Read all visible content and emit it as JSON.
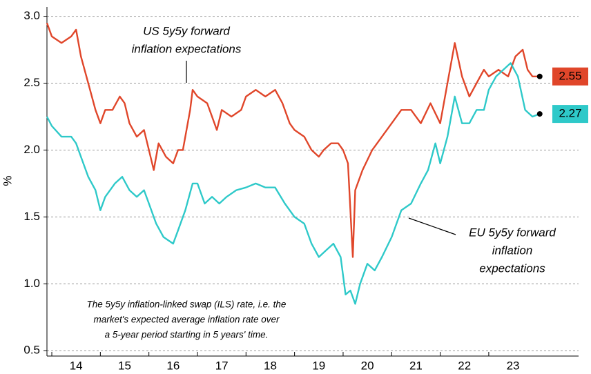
{
  "chart_data": {
    "type": "line",
    "y_label": "%",
    "xlim": [
      2013.9,
      2024.85
    ],
    "ylim": [
      0.46,
      3.07
    ],
    "xticks": [
      {
        "value": 2014,
        "label": "14"
      },
      {
        "value": 2015,
        "label": "15"
      },
      {
        "value": 2016,
        "label": "16"
      },
      {
        "value": 2017,
        "label": "17"
      },
      {
        "value": 2018,
        "label": "18"
      },
      {
        "value": 2019,
        "label": "19"
      },
      {
        "value": 2020,
        "label": "20"
      },
      {
        "value": 2021,
        "label": "21"
      },
      {
        "value": 2022,
        "label": "22"
      },
      {
        "value": 2023,
        "label": "23"
      }
    ],
    "yticks": [
      0.5,
      {
        "value": 1,
        "label": "1.0"
      },
      1.5,
      {
        "value": 2,
        "label": "2.0"
      },
      2.5,
      {
        "value": 3,
        "label": "3.0"
      }
    ],
    "grid": true,
    "series": [
      {
        "annotation": [
          "US 5y5y forward",
          "inflation expectations"
        ],
        "color": "#e0462a",
        "x": [
          2013.9,
          2014.0,
          2014.2,
          2014.4,
          2014.5,
          2014.6,
          2014.75,
          2014.9,
          2015.0,
          2015.1,
          2015.25,
          2015.4,
          2015.5,
          2015.6,
          2015.75,
          2015.9,
          2016.0,
          2016.1,
          2016.2,
          2016.35,
          2016.5,
          2016.6,
          2016.7,
          2016.85,
          2016.9,
          2017.0,
          2017.2,
          2017.4,
          2017.5,
          2017.7,
          2017.9,
          2018.0,
          2018.2,
          2018.4,
          2018.6,
          2018.75,
          2018.9,
          2019.0,
          2019.2,
          2019.35,
          2019.5,
          2019.6,
          2019.75,
          2019.9,
          2020.0,
          2020.1,
          2020.2,
          2020.25,
          2020.4,
          2020.6,
          2020.8,
          2021.0,
          2021.2,
          2021.4,
          2021.6,
          2021.8,
          2022.0,
          2022.15,
          2022.3,
          2022.45,
          2022.6,
          2022.75,
          2022.9,
          2023.0,
          2023.2,
          2023.4,
          2023.55,
          2023.7,
          2023.8,
          2023.9,
          2024.05
        ],
        "values": [
          2.95,
          2.85,
          2.8,
          2.85,
          2.9,
          2.7,
          2.5,
          2.3,
          2.2,
          2.3,
          2.3,
          2.4,
          2.35,
          2.2,
          2.1,
          2.15,
          2.0,
          1.85,
          2.05,
          1.95,
          1.9,
          2.0,
          2.0,
          2.3,
          2.45,
          2.4,
          2.35,
          2.15,
          2.3,
          2.25,
          2.3,
          2.4,
          2.45,
          2.4,
          2.45,
          2.35,
          2.2,
          2.15,
          2.1,
          2.0,
          1.95,
          2.0,
          2.05,
          2.05,
          2.0,
          1.9,
          1.2,
          1.7,
          1.85,
          2.0,
          2.1,
          2.2,
          2.3,
          2.3,
          2.2,
          2.35,
          2.2,
          2.5,
          2.8,
          2.55,
          2.4,
          2.5,
          2.6,
          2.55,
          2.6,
          2.55,
          2.7,
          2.75,
          2.6,
          2.55,
          2.55
        ]
      },
      {
        "annotation": [
          "EU 5y5y forward",
          "inflation",
          "expectations"
        ],
        "color": "#2ec9c9",
        "x": [
          2013.9,
          2014.0,
          2014.2,
          2014.4,
          2014.5,
          2014.6,
          2014.75,
          2014.9,
          2015.0,
          2015.1,
          2015.3,
          2015.45,
          2015.6,
          2015.75,
          2015.9,
          2016.0,
          2016.15,
          2016.3,
          2016.5,
          2016.6,
          2016.75,
          2016.9,
          2017.0,
          2017.15,
          2017.3,
          2017.45,
          2017.6,
          2017.8,
          2018.0,
          2018.2,
          2018.4,
          2018.6,
          2018.8,
          2019.0,
          2019.2,
          2019.35,
          2019.5,
          2019.65,
          2019.8,
          2019.95,
          2020.05,
          2020.15,
          2020.25,
          2020.35,
          2020.5,
          2020.65,
          2020.8,
          2021.0,
          2021.2,
          2021.4,
          2021.6,
          2021.75,
          2021.9,
          2022.0,
          2022.15,
          2022.3,
          2022.45,
          2022.6,
          2022.75,
          2022.9,
          2023.0,
          2023.15,
          2023.3,
          2023.45,
          2023.6,
          2023.75,
          2023.9,
          2024.05
        ],
        "values": [
          2.25,
          2.18,
          2.1,
          2.1,
          2.05,
          1.95,
          1.8,
          1.7,
          1.55,
          1.65,
          1.75,
          1.8,
          1.7,
          1.65,
          1.7,
          1.6,
          1.45,
          1.35,
          1.3,
          1.4,
          1.55,
          1.75,
          1.75,
          1.6,
          1.65,
          1.6,
          1.65,
          1.7,
          1.72,
          1.75,
          1.72,
          1.72,
          1.6,
          1.5,
          1.45,
          1.3,
          1.2,
          1.25,
          1.3,
          1.2,
          0.92,
          0.95,
          0.85,
          1.0,
          1.15,
          1.1,
          1.2,
          1.35,
          1.55,
          1.6,
          1.75,
          1.85,
          2.05,
          1.9,
          2.1,
          2.4,
          2.2,
          2.2,
          2.3,
          2.3,
          2.45,
          2.55,
          2.6,
          2.65,
          2.55,
          2.3,
          2.25,
          2.27
        ]
      }
    ],
    "note": [
      "The 5y5y inflation-linked swap (ILS) rate, i.e. the",
      "market's expected average inflation rate over",
      "a 5-year period starting in 5 years' time."
    ]
  }
}
